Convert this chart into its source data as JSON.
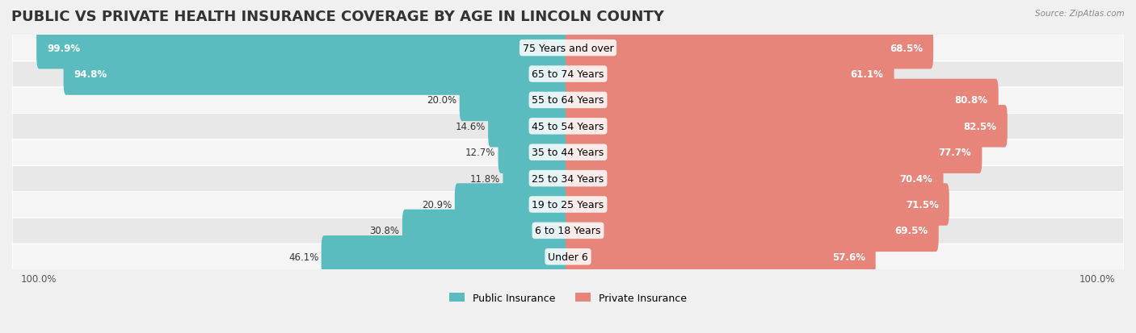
{
  "title": "PUBLIC VS PRIVATE HEALTH INSURANCE COVERAGE BY AGE IN LINCOLN COUNTY",
  "source": "Source: ZipAtlas.com",
  "categories": [
    "Under 6",
    "6 to 18 Years",
    "19 to 25 Years",
    "25 to 34 Years",
    "35 to 44 Years",
    "45 to 54 Years",
    "55 to 64 Years",
    "65 to 74 Years",
    "75 Years and over"
  ],
  "public_values": [
    46.1,
    30.8,
    20.9,
    11.8,
    12.7,
    14.6,
    20.0,
    94.8,
    99.9
  ],
  "private_values": [
    57.6,
    69.5,
    71.5,
    70.4,
    77.7,
    82.5,
    80.8,
    61.1,
    68.5
  ],
  "public_color": "#5bbcbf",
  "private_color": "#e8857a",
  "bg_color": "#f0f0f0",
  "bar_bg_color": "#e0e0e0",
  "row_bg_color_odd": "#f5f5f5",
  "row_bg_color_even": "#e8e8e8",
  "title_fontsize": 13,
  "label_fontsize": 9,
  "value_fontsize": 8.5,
  "legend_fontsize": 9
}
